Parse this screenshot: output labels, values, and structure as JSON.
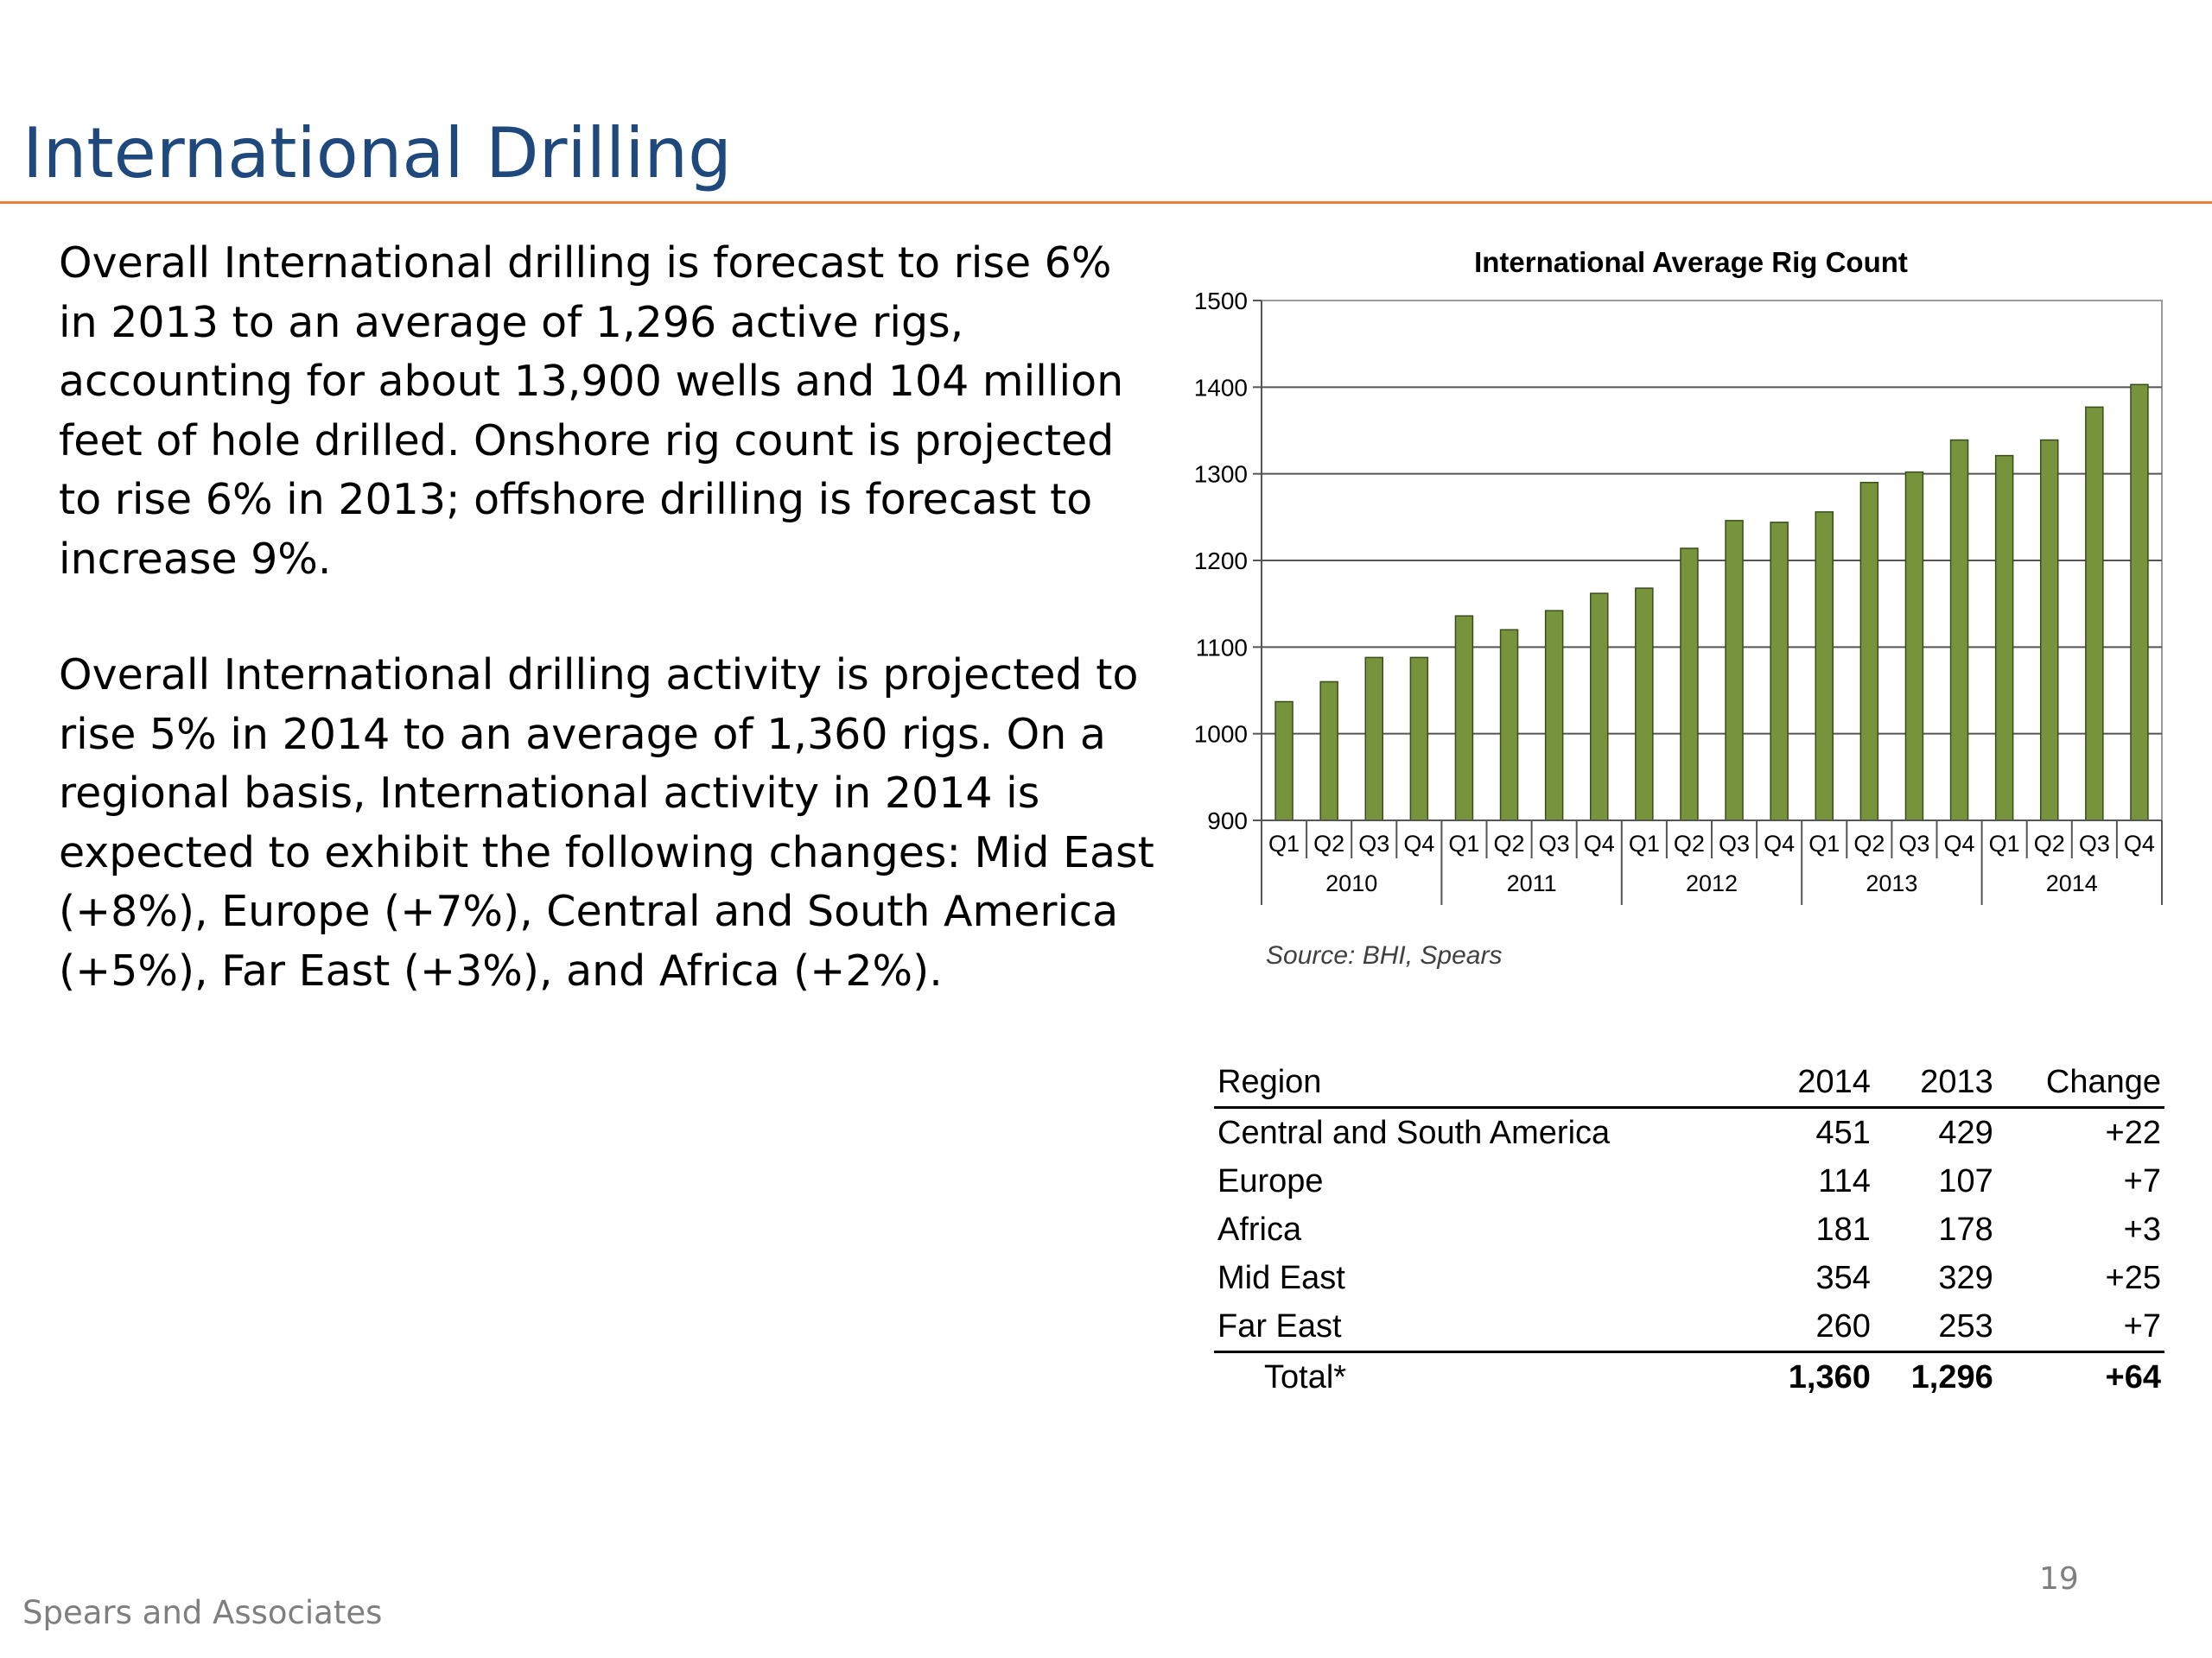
{
  "slide": {
    "title": "International Drilling",
    "paragraph1_lines": [
      "Overall International drilling is forecast to rise 6%",
      "in 2013 to an average of 1,296 active rigs,",
      "accounting for about 13,900 wells and 104 million",
      "feet of hole drilled. Onshore rig count is projected",
      "to rise 6% in 2013; offshore drilling is forecast to",
      "increase 9%."
    ],
    "paragraph2_lines": [
      "Overall International drilling activity is projected to",
      "rise 5% in 2014 to an average of 1,360 rigs. On a",
      "regional basis, International activity in 2014 is",
      "expected to exhibit the following changes: Mid East",
      "(+8%), Europe (+7%), Central and South America",
      "(+5%), Far East (+3%), and Africa (+2%)."
    ],
    "footer": "Spears and Associates",
    "page_number": "19"
  },
  "chart_data": {
    "type": "bar",
    "title": "International Average Rig Count",
    "source": "Source: BHI, Spears",
    "ylim": [
      900,
      1500
    ],
    "yticks": [
      900,
      1000,
      1100,
      1200,
      1300,
      1400,
      1500
    ],
    "grid": true,
    "legend": "none",
    "bar_color": "#77933C",
    "categories": [
      "Q1",
      "Q2",
      "Q3",
      "Q4",
      "Q1",
      "Q2",
      "Q3",
      "Q4",
      "Q1",
      "Q2",
      "Q3",
      "Q4",
      "Q1",
      "Q2",
      "Q3",
      "Q4",
      "Q1",
      "Q2",
      "Q3",
      "Q4"
    ],
    "groups": [
      "2010",
      "2011",
      "2012",
      "2013",
      "2014"
    ],
    "values": [
      1037,
      1060,
      1088,
      1088,
      1136,
      1120,
      1142,
      1162,
      1168,
      1214,
      1246,
      1244,
      1256,
      1290,
      1302,
      1339,
      1321,
      1339,
      1377,
      1403
    ]
  },
  "table": {
    "headers": [
      "Region",
      "2014",
      "2013",
      "Change"
    ],
    "rows": [
      [
        "Central and South America",
        "451",
        "429",
        "+22"
      ],
      [
        "Europe",
        "114",
        "107",
        "+7"
      ],
      [
        "Africa",
        "181",
        "178",
        "+3"
      ],
      [
        "Mid East",
        "354",
        "329",
        "+25"
      ],
      [
        "Far East",
        "260",
        "253",
        "+7"
      ]
    ],
    "total": [
      "Total*",
      "1,360",
      "1,296",
      "+64"
    ]
  }
}
